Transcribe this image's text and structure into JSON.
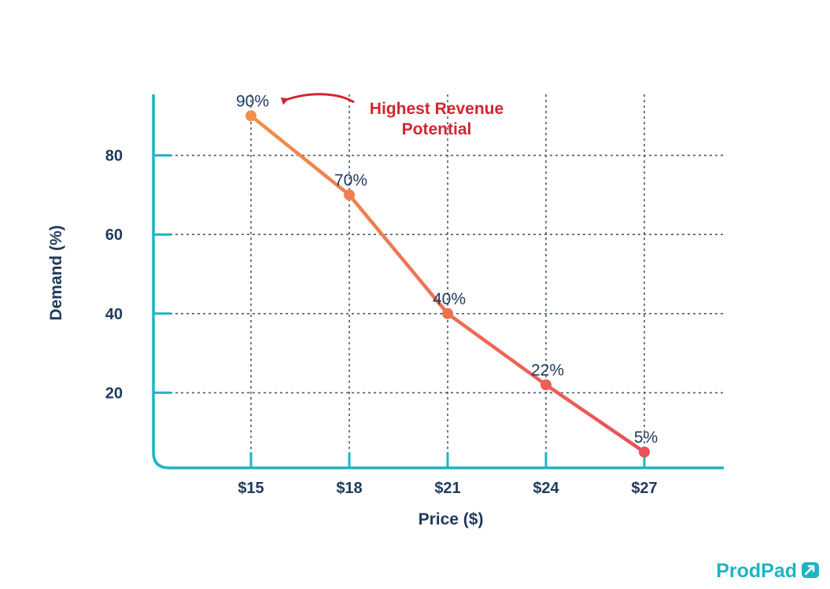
{
  "chart_data": {
    "type": "line",
    "title": "",
    "xlabel": "Price ($)",
    "ylabel": "Demand (%)",
    "categories": [
      "$15",
      "$18",
      "$21",
      "$24",
      "$27"
    ],
    "values": [
      90,
      70,
      40,
      22,
      5
    ],
    "data_labels": [
      "90%",
      "70%",
      "40%",
      "22%",
      "5%"
    ],
    "y_ticks": [
      20,
      40,
      60,
      80
    ],
    "ylim": [
      0,
      95
    ],
    "grid": true,
    "annotation": {
      "lines": [
        "Highest Revenue",
        "Potential"
      ],
      "points_to": "$15"
    },
    "colors": {
      "axis": "#1fb4c4",
      "grid": "#4a5a6e",
      "line_start": "#f0904a",
      "line_end": "#e8505a",
      "text": "#1f3a5c",
      "annotation": "#d3262e"
    }
  },
  "brand": {
    "logo_text": "ProdPad"
  }
}
